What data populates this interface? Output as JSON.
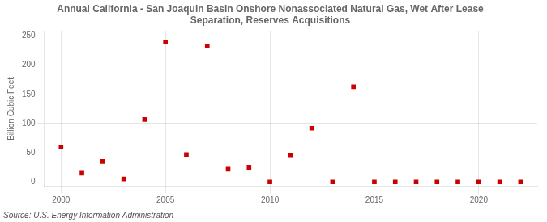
{
  "chart_data": {
    "type": "scatter",
    "title": "Annual California - San Joaquin Basin Onshore Nonassociated Natural Gas, Wet After Lease\nSeparation, Reserves Acquisitions",
    "ylabel": "Billion Cubic Feet",
    "annotations": [
      "Source: U.S. Energy Information Administration"
    ],
    "x": [
      2000,
      2001,
      2002,
      2003,
      2004,
      2005,
      2006,
      2007,
      2008,
      2009,
      2010,
      2011,
      2012,
      2013,
      2014,
      2015,
      2016,
      2017,
      2018,
      2019,
      2020,
      2021,
      2022
    ],
    "values": [
      60,
      15,
      35,
      5,
      107,
      240,
      47,
      233,
      22,
      25,
      0,
      45,
      92,
      0,
      163,
      0,
      0,
      0,
      0,
      0,
      0,
      0,
      0
    ],
    "color": "#cc0000",
    "marker": "square",
    "xlim": [
      1999.2,
      2022.8
    ],
    "ylim": [
      -8,
      258
    ],
    "xticks": [
      2000,
      2005,
      2010,
      2015,
      2020
    ],
    "yticks": [
      0,
      50,
      100,
      150,
      200,
      250
    ],
    "grid": true
  }
}
